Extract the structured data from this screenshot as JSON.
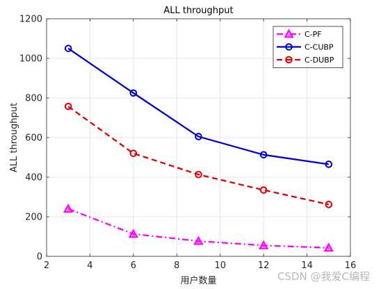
{
  "chart_data": {
    "type": "line",
    "title": "ALL throughput",
    "xlabel": "用户数量",
    "ylabel": "ALL throughput",
    "xlim": [
      2,
      16
    ],
    "ylim": [
      0,
      1200
    ],
    "xticks": [
      2,
      4,
      6,
      8,
      10,
      12,
      14,
      16
    ],
    "yticks": [
      0,
      200,
      400,
      600,
      800,
      1000,
      1200
    ],
    "grid": true,
    "legend_position": "top-right",
    "x": [
      3,
      6,
      9,
      12,
      15
    ],
    "series": [
      {
        "name": "C-PF",
        "values": [
          240,
          113,
          77,
          55,
          43
        ],
        "color": "#ff00ff",
        "line_style": "dash-dot",
        "marker": "triangle"
      },
      {
        "name": "C-CUBP",
        "values": [
          1050,
          825,
          605,
          513,
          465
        ],
        "color": "#0000cd",
        "line_style": "solid",
        "marker": "circle"
      },
      {
        "name": "C-DUBP",
        "values": [
          757,
          520,
          413,
          335,
          262
        ],
        "color": "#e00000",
        "line_style": "dashed",
        "marker": "circle"
      }
    ]
  },
  "watermark": "CSDN @我爱C编程"
}
